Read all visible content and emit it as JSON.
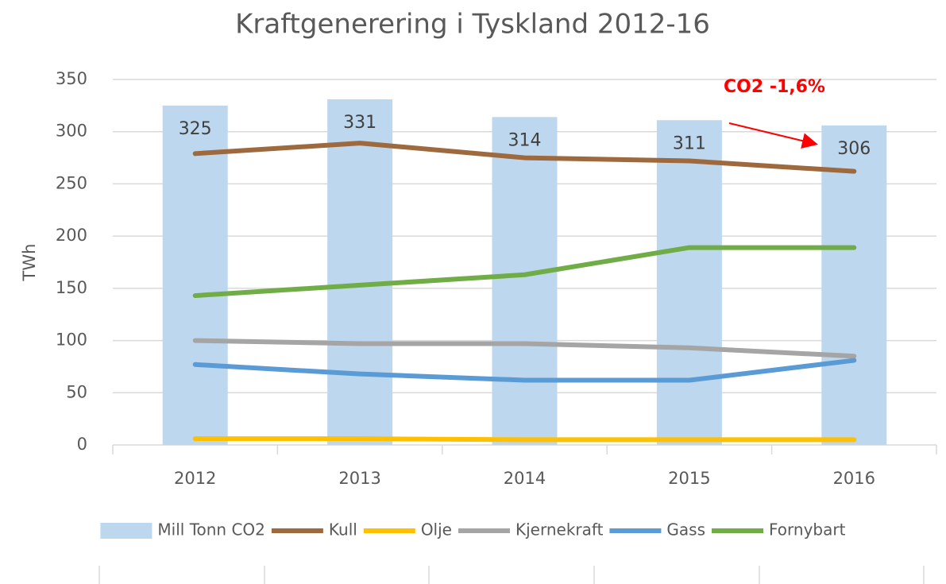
{
  "chart_data": {
    "type": "combo",
    "title": "Kraftgenerering i Tyskland 2012-16",
    "y_label": "TWh",
    "annotation": "CO2 -1,6%",
    "categories": [
      "2012",
      "2013",
      "2014",
      "2015",
      "2016"
    ],
    "ylim": [
      0,
      350
    ],
    "yticks": [
      0,
      50,
      100,
      150,
      200,
      250,
      300,
      350
    ],
    "grid": true,
    "legend": "bottom",
    "series": [
      {
        "name": "Mill Tonn CO2",
        "type": "bar",
        "color": "#bdd7ee",
        "values": [
          325,
          331,
          314,
          311,
          306
        ]
      },
      {
        "name": "Kull",
        "type": "line",
        "color": "#9e6a3d",
        "values": [
          279,
          289,
          275,
          272,
          262
        ]
      },
      {
        "name": "Olje",
        "type": "line",
        "color": "#ffc000",
        "values": [
          6,
          6,
          5,
          5,
          5
        ]
      },
      {
        "name": "Kjernekraft",
        "type": "line",
        "color": "#a5a5a5",
        "values": [
          100,
          97,
          97,
          93,
          85
        ]
      },
      {
        "name": "Gass",
        "type": "line",
        "color": "#5b9bd5",
        "values": [
          77,
          68,
          62,
          62,
          81
        ]
      },
      {
        "name": "Fornybart",
        "type": "line",
        "color": "#70ad47",
        "values": [
          143,
          153,
          163,
          189,
          189
        ]
      }
    ]
  }
}
